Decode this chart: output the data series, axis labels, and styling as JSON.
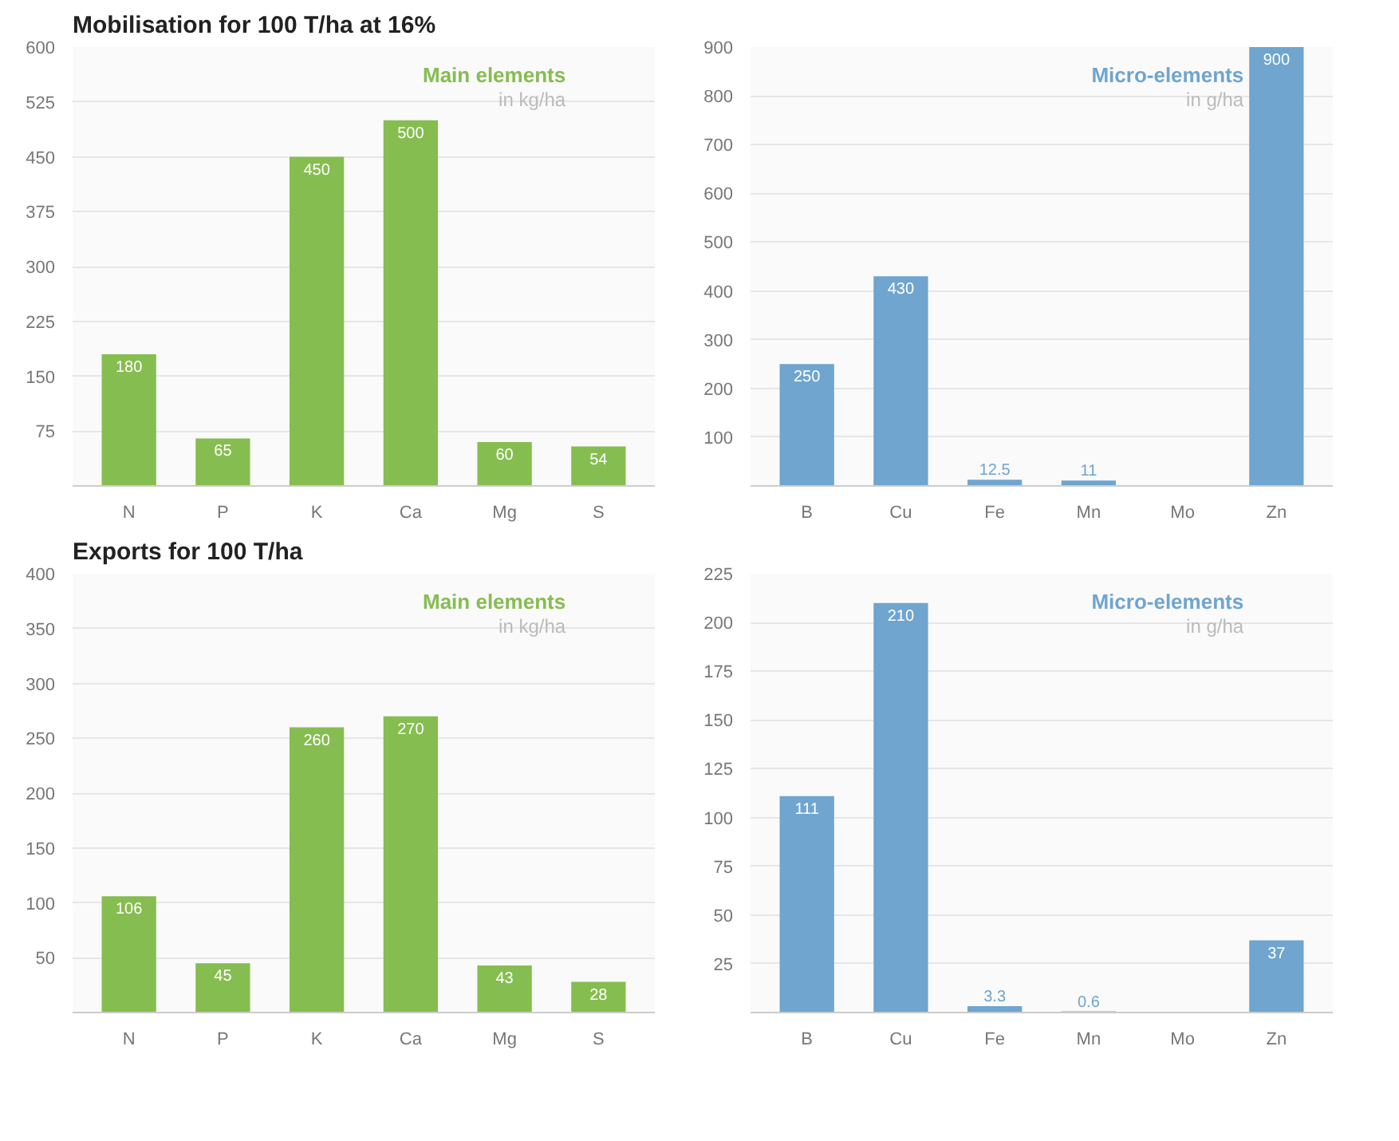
{
  "chart_data": [
    {
      "type": "bar",
      "title": "Mobilisation for 100 T/ha at 16%",
      "categories": [
        "N",
        "P",
        "K",
        "Ca",
        "Mg",
        "S"
      ],
      "values": [
        180,
        65,
        450,
        500,
        60,
        54
      ],
      "color": "#86bd50",
      "ylim": [
        0,
        600
      ],
      "yticks": [
        75,
        150,
        225,
        300,
        375,
        450,
        525,
        600
      ],
      "grid": "y",
      "data_labels": true,
      "annotations": [
        "Main elements",
        "in kg/ha"
      ]
    },
    {
      "type": "bar",
      "categories": [
        "B",
        "Cu",
        "Fe",
        "Mn",
        "Mo",
        "Zn"
      ],
      "values": [
        250,
        430,
        12.5,
        11,
        null,
        900
      ],
      "color": "#6fa5cf",
      "ylim": [
        0,
        900
      ],
      "yticks": [
        100,
        200,
        300,
        400,
        500,
        600,
        700,
        800,
        900
      ],
      "grid": "y",
      "data_labels": true,
      "annotations": [
        "Micro-elements",
        "in g/ha"
      ]
    },
    {
      "type": "bar",
      "title": "Exports for 100 T/ha",
      "categories": [
        "N",
        "P",
        "K",
        "Ca",
        "Mg",
        "S"
      ],
      "values": [
        106,
        45,
        260,
        270,
        43,
        28
      ],
      "color": "#86bd50",
      "ylim": [
        0,
        400
      ],
      "yticks": [
        50,
        100,
        150,
        200,
        250,
        300,
        350,
        400
      ],
      "grid": "y",
      "data_labels": true,
      "annotations": [
        "Main elements",
        "in kg/ha"
      ]
    },
    {
      "type": "bar",
      "categories": [
        "B",
        "Cu",
        "Fe",
        "Mn",
        "Mo",
        "Zn"
      ],
      "values": [
        111,
        210,
        3.3,
        0.6,
        null,
        37
      ],
      "color": "#6fa5cf",
      "ylim": [
        0,
        225
      ],
      "yticks": [
        25,
        50,
        75,
        100,
        125,
        150,
        175,
        200,
        225
      ],
      "grid": "y",
      "data_labels": true,
      "annotations": [
        "Micro-elements",
        "in g/ha"
      ]
    }
  ]
}
